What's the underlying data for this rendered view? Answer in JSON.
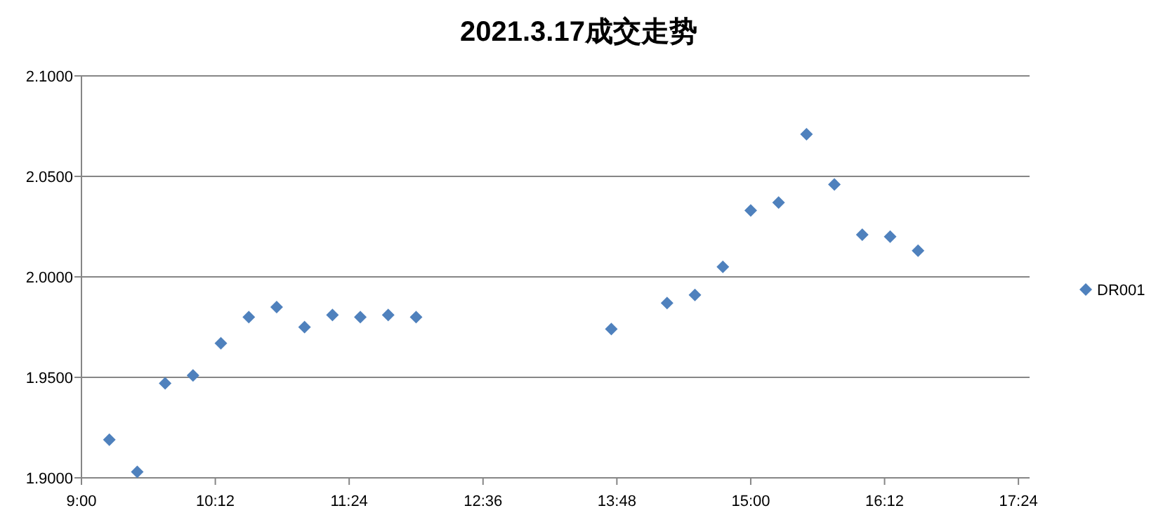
{
  "chart_data": {
    "type": "scatter",
    "title": "2021.3.17成交走势",
    "x": [
      9.25,
      9.5,
      9.75,
      10,
      10.25,
      10.5,
      10.75,
      11,
      11.25,
      11.5,
      11.75,
      12,
      13.75,
      14.25,
      14.5,
      14.75,
      15,
      15.25,
      15.5,
      15.75,
      16,
      16.25,
      16.5
    ],
    "series": [
      {
        "name": "DR001",
        "color": "#4f81bd",
        "values": [
          1.919,
          1.903,
          1.947,
          1.951,
          1.967,
          1.98,
          1.985,
          1.975,
          1.981,
          1.98,
          1.981,
          1.98,
          1.974,
          1.987,
          1.991,
          2.005,
          2.033,
          2.037,
          2.071,
          2.046,
          2.021,
          2.02,
          2.013
        ]
      }
    ],
    "xlim": [
      9,
      17.5
    ],
    "xticks": [
      {
        "value": 9,
        "label": "9:00"
      },
      {
        "value": 10.2,
        "label": "10:12"
      },
      {
        "value": 11.4,
        "label": "11:24"
      },
      {
        "value": 12.6,
        "label": "12:36"
      },
      {
        "value": 13.8,
        "label": "13:48"
      },
      {
        "value": 15,
        "label": "15:00"
      },
      {
        "value": 16.2,
        "label": "16:12"
      },
      {
        "value": 17.4,
        "label": "17:24"
      }
    ],
    "ylim": [
      1.9,
      2.1
    ],
    "yticks": [
      {
        "value": 1.9,
        "label": "1.9000"
      },
      {
        "value": 1.95,
        "label": "1.9500"
      },
      {
        "value": 2.0,
        "label": "2.0000"
      },
      {
        "value": 2.05,
        "label": "2.0500"
      },
      {
        "value": 2.1,
        "label": "2.1000"
      }
    ],
    "grid": "y",
    "legend": "right",
    "marker": "diamond"
  }
}
